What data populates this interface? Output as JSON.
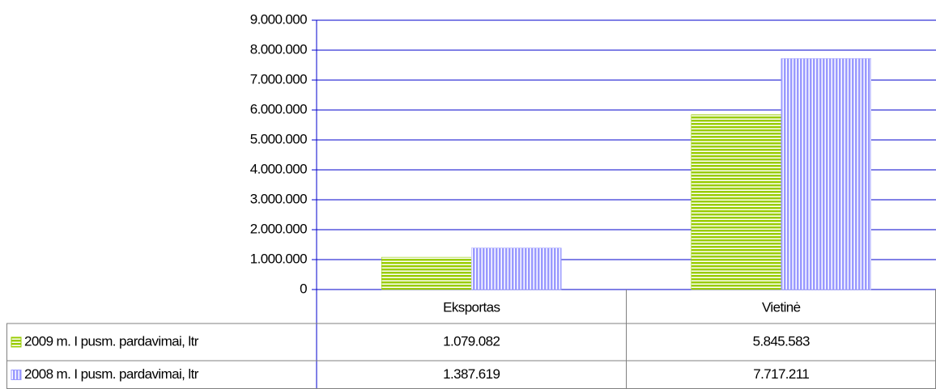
{
  "chart_data": {
    "type": "bar",
    "categories": [
      "Eksportas",
      "Vietinė"
    ],
    "series": [
      {
        "name": "2009 m. I pusm. pardavimai, ltr",
        "color": "#99cc00",
        "pattern": "horizontal",
        "values": [
          1079082,
          5845583
        ],
        "value_labels": [
          "1.079.082",
          "5.845.583"
        ]
      },
      {
        "name": "2008 m. I pusm. pardavimai, ltr",
        "color": "#9999ff",
        "pattern": "vertical",
        "values": [
          1387619,
          7717211
        ],
        "value_labels": [
          "1.387.619",
          "7.717.211"
        ]
      }
    ],
    "ylim": [
      0,
      9000000
    ],
    "yticks": [
      0,
      {
        "value": 1000000,
        "label": "1.000.000"
      },
      {
        "value": 2000000,
        "label": "2.000.000"
      },
      {
        "value": 3000000,
        "label": "3.000.000"
      },
      {
        "value": 4000000,
        "label": "4.000.000"
      },
      {
        "value": 5000000,
        "label": "5.000.000"
      },
      {
        "value": 6000000,
        "label": "6.000.000"
      },
      {
        "value": 7000000,
        "label": "7.000.000"
      },
      {
        "value": 8000000,
        "label": "8.000.000"
      },
      {
        "value": 9000000,
        "label": "9.000.000"
      }
    ],
    "grid": true,
    "grid_color": "#0000cc"
  }
}
